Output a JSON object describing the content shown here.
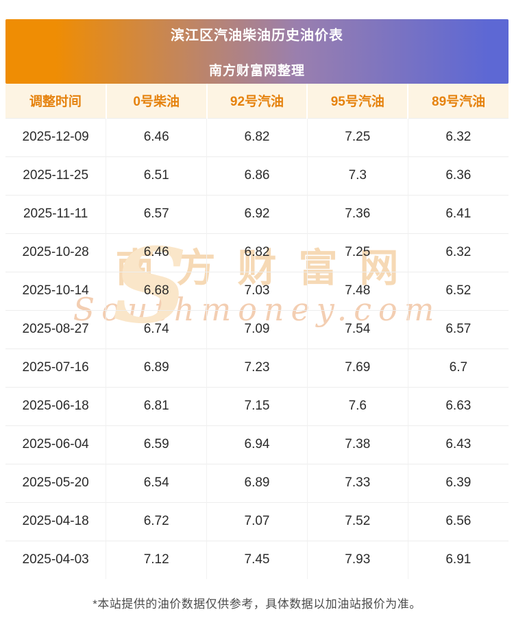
{
  "header": {
    "title": "滨江区汽油柴油历史油价表",
    "subtitle": "南方财富网整理"
  },
  "table": {
    "columns": [
      "调整时间",
      "0号柴油",
      "92号汽油",
      "95号汽油",
      "89号汽油"
    ],
    "rows": [
      [
        "2025-12-09",
        "6.46",
        "6.82",
        "7.25",
        "6.32"
      ],
      [
        "2025-11-25",
        "6.51",
        "6.86",
        "7.3",
        "6.36"
      ],
      [
        "2025-11-11",
        "6.57",
        "6.92",
        "7.36",
        "6.41"
      ],
      [
        "2025-10-28",
        "6.46",
        "6.82",
        "7.25",
        "6.32"
      ],
      [
        "2025-10-14",
        "6.68",
        "7.03",
        "7.48",
        "6.52"
      ],
      [
        "2025-08-27",
        "6.74",
        "7.09",
        "7.54",
        "6.57"
      ],
      [
        "2025-07-16",
        "6.89",
        "7.23",
        "7.69",
        "6.7"
      ],
      [
        "2025-06-18",
        "6.81",
        "7.15",
        "7.6",
        "6.63"
      ],
      [
        "2025-06-04",
        "6.59",
        "6.94",
        "7.38",
        "6.43"
      ],
      [
        "2025-05-20",
        "6.54",
        "6.89",
        "7.33",
        "6.39"
      ],
      [
        "2025-04-18",
        "6.72",
        "7.07",
        "7.52",
        "6.56"
      ],
      [
        "2025-04-03",
        "7.12",
        "7.45",
        "7.93",
        "6.91"
      ]
    ]
  },
  "watermark": {
    "logo": "S",
    "cn": "南方财富网",
    "en": "Southmoney.com"
  },
  "footer": {
    "note": "*本站提供的油价数据仅供参考，具体数据以加油站报价为准。"
  },
  "colors": {
    "banner_gradient_left": "#ef8d04",
    "banner_gradient_right": "#5d68d4",
    "table_header_bg": "#fdf4e3",
    "table_header_text": "#e5820e",
    "body_text": "#2b2b2b",
    "watermark": "#f6d9b5"
  }
}
